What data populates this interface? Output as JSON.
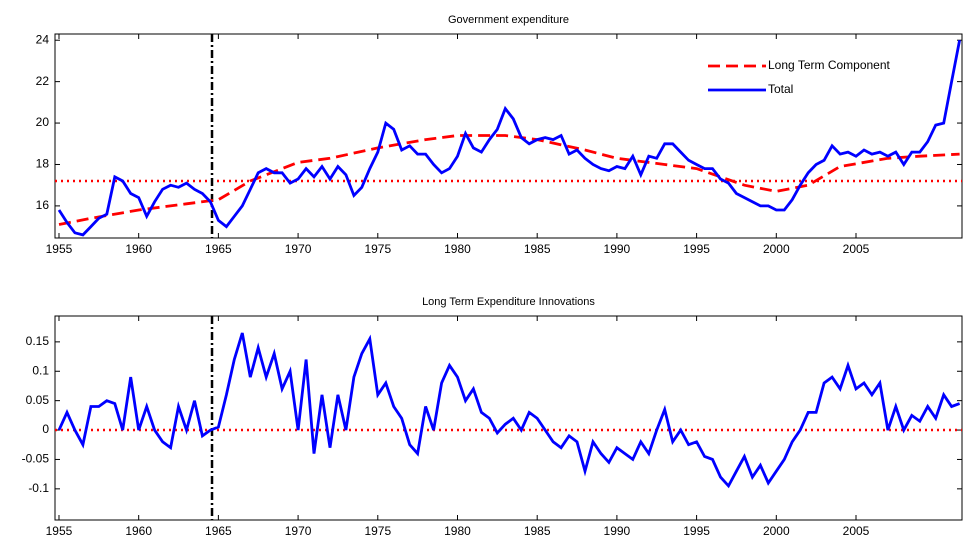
{
  "chart_data": [
    {
      "type": "line",
      "title": "Government expenditure",
      "xlim": [
        1954.75,
        2011.65
      ],
      "xticks": [
        1955,
        1960,
        1965,
        1970,
        1975,
        1980,
        1985,
        1990,
        1995,
        2000,
        2005
      ],
      "ylim": [
        14.45,
        24.3
      ],
      "yticks": [
        16,
        18,
        20,
        22,
        24
      ],
      "hline": {
        "value": 17.2,
        "color": "#ff0000"
      },
      "vline": 1964.6,
      "legend": "upper right",
      "series": [
        {
          "name": "Long Term Component",
          "color": "#ff0000",
          "dash": true,
          "x": [
            1955,
            1957,
            1960,
            1963,
            1965,
            1967,
            1970,
            1972,
            1975,
            1978,
            1980,
            1983,
            1985,
            1988,
            1990,
            1993,
            1995,
            1998,
            2000,
            2002,
            2004,
            2007,
            2009,
            2011.5
          ],
          "values": [
            15.1,
            15.4,
            15.8,
            16.1,
            16.3,
            17.2,
            18.1,
            18.3,
            18.8,
            19.2,
            19.4,
            19.4,
            19.2,
            18.7,
            18.3,
            18.0,
            17.8,
            17.0,
            16.7,
            17.0,
            17.9,
            18.3,
            18.4,
            18.5
          ]
        },
        {
          "name": "Total",
          "color": "#0000ff",
          "dash": false,
          "x": [
            1955,
            1955.5,
            1956,
            1956.5,
            1957,
            1957.5,
            1958,
            1958.5,
            1959,
            1959.5,
            1960,
            1960.5,
            1961,
            1961.5,
            1962,
            1962.5,
            1963,
            1963.5,
            1964,
            1964.5,
            1965,
            1965.5,
            1966,
            1966.5,
            1967,
            1967.5,
            1968,
            1968.5,
            1969,
            1969.5,
            1970,
            1970.5,
            1971,
            1971.5,
            1972,
            1972.5,
            1973,
            1973.5,
            1974,
            1974.5,
            1975,
            1975.5,
            1976,
            1976.5,
            1977,
            1977.5,
            1978,
            1978.5,
            1979,
            1979.5,
            1980,
            1980.5,
            1981,
            1981.5,
            1982,
            1982.5,
            1983,
            1983.5,
            1984,
            1984.5,
            1985,
            1985.5,
            1986,
            1986.5,
            1987,
            1987.5,
            1988,
            1988.5,
            1989,
            1989.5,
            1990,
            1990.5,
            1991,
            1991.5,
            1992,
            1992.5,
            1993,
            1993.5,
            1994,
            1994.5,
            1995,
            1995.5,
            1996,
            1996.5,
            1997,
            1997.5,
            1998,
            1998.5,
            1999,
            1999.5,
            2000,
            2000.5,
            2001,
            2001.5,
            2002,
            2002.5,
            2003,
            2003.5,
            2004,
            2004.5,
            2005,
            2005.5,
            2006,
            2006.5,
            2007,
            2007.5,
            2008,
            2008.5,
            2009,
            2009.5,
            2010,
            2010.5,
            2011,
            2011.5
          ],
          "values": [
            15.8,
            15.2,
            14.7,
            14.6,
            15.0,
            15.4,
            15.6,
            17.4,
            17.2,
            16.6,
            16.4,
            15.5,
            16.2,
            16.8,
            17.0,
            16.9,
            17.1,
            16.8,
            16.6,
            16.2,
            15.3,
            15.0,
            15.5,
            16.0,
            16.8,
            17.6,
            17.8,
            17.6,
            17.6,
            17.1,
            17.3,
            17.8,
            17.4,
            17.9,
            17.3,
            17.9,
            17.5,
            16.5,
            16.9,
            17.8,
            18.6,
            20.0,
            19.7,
            18.7,
            18.9,
            18.5,
            18.5,
            18.0,
            17.6,
            17.8,
            18.4,
            19.5,
            18.8,
            18.6,
            19.2,
            19.7,
            20.7,
            20.2,
            19.3,
            19.0,
            19.2,
            19.3,
            19.2,
            19.4,
            18.5,
            18.7,
            18.3,
            18.0,
            17.8,
            17.7,
            17.9,
            17.8,
            18.4,
            17.5,
            18.4,
            18.3,
            19.0,
            19.0,
            18.6,
            18.2,
            18.0,
            17.8,
            17.8,
            17.3,
            17.1,
            16.6,
            16.4,
            16.2,
            16.0,
            16.0,
            15.8,
            15.8,
            16.3,
            17.0,
            17.6,
            18.0,
            18.2,
            18.9,
            18.5,
            18.6,
            18.4,
            18.7,
            18.5,
            18.6,
            18.4,
            18.6,
            18.0,
            18.6,
            18.6,
            19.1,
            19.9,
            20.0,
            22.0,
            24.0
          ]
        }
      ]
    },
    {
      "type": "line",
      "title": "Long Term Expenditure Innovations",
      "xlim": [
        1954.75,
        2011.65
      ],
      "xticks": [
        1955,
        1960,
        1965,
        1970,
        1975,
        1980,
        1985,
        1990,
        1995,
        2000,
        2005
      ],
      "ylim": [
        -0.153,
        0.194
      ],
      "yticks": [
        -0.1,
        -0.05,
        0,
        0.05,
        0.1,
        0.15
      ],
      "hline": {
        "value": 0,
        "color": "#ff0000"
      },
      "vline": 1964.6,
      "series": [
        {
          "color": "#0000ff",
          "dash": false,
          "x": [
            1955,
            1955.5,
            1956,
            1956.5,
            1957,
            1957.5,
            1958,
            1958.5,
            1959,
            1959.5,
            1960,
            1960.5,
            1961,
            1961.5,
            1962,
            1962.5,
            1963,
            1963.5,
            1964,
            1964.5,
            1965,
            1965.5,
            1966,
            1966.5,
            1967,
            1967.5,
            1968,
            1968.5,
            1969,
            1969.5,
            1970,
            1970.5,
            1971,
            1971.5,
            1972,
            1972.5,
            1973,
            1973.5,
            1974,
            1974.5,
            1975,
            1975.5,
            1976,
            1976.5,
            1977,
            1977.5,
            1978,
            1978.5,
            1979,
            1979.5,
            1980,
            1980.5,
            1981,
            1981.5,
            1982,
            1982.5,
            1983,
            1983.5,
            1984,
            1984.5,
            1985,
            1985.5,
            1986,
            1986.5,
            1987,
            1987.5,
            1988,
            1988.5,
            1989,
            1989.5,
            1990,
            1990.5,
            1991,
            1991.5,
            1992,
            1992.5,
            1993,
            1993.5,
            1994,
            1994.5,
            1995,
            1995.5,
            1996,
            1996.5,
            1997,
            1997.5,
            1998,
            1998.5,
            1999,
            1999.5,
            2000,
            2000.5,
            2001,
            2001.5,
            2002,
            2002.5,
            2003,
            2003.5,
            2004,
            2004.5,
            2005,
            2005.5,
            2006,
            2006.5,
            2007,
            2007.5,
            2008,
            2008.5,
            2009,
            2009.5,
            2010,
            2010.5,
            2011,
            2011.5
          ],
          "values": [
            0.0,
            0.03,
            0.0,
            -0.025,
            0.04,
            0.04,
            0.05,
            0.045,
            0.0,
            0.09,
            0.0,
            0.04,
            0.0,
            -0.02,
            -0.03,
            0.04,
            0.0,
            0.05,
            -0.01,
            0.0,
            0.005,
            0.06,
            0.12,
            0.165,
            0.09,
            0.14,
            0.09,
            0.13,
            0.07,
            0.1,
            0.0,
            0.12,
            -0.04,
            0.06,
            -0.03,
            0.06,
            0.0,
            0.09,
            0.13,
            0.155,
            0.06,
            0.08,
            0.04,
            0.02,
            -0.025,
            -0.04,
            0.04,
            0.0,
            0.08,
            0.11,
            0.09,
            0.05,
            0.07,
            0.03,
            0.02,
            -0.005,
            0.01,
            0.02,
            0.0,
            0.03,
            0.02,
            0.0,
            -0.02,
            -0.03,
            -0.01,
            -0.02,
            -0.07,
            -0.02,
            -0.04,
            -0.055,
            -0.03,
            -0.04,
            -0.05,
            -0.02,
            -0.04,
            0.0,
            0.035,
            -0.02,
            0.0,
            -0.025,
            -0.02,
            -0.045,
            -0.05,
            -0.08,
            -0.095,
            -0.07,
            -0.045,
            -0.08,
            -0.06,
            -0.09,
            -0.07,
            -0.05,
            -0.02,
            0.0,
            0.03,
            0.03,
            0.08,
            0.09,
            0.07,
            0.11,
            0.07,
            0.08,
            0.06,
            0.08,
            0.0,
            0.04,
            0.0,
            0.025,
            0.015,
            0.04,
            0.02,
            0.06,
            0.04,
            0.045
          ]
        }
      ]
    }
  ]
}
